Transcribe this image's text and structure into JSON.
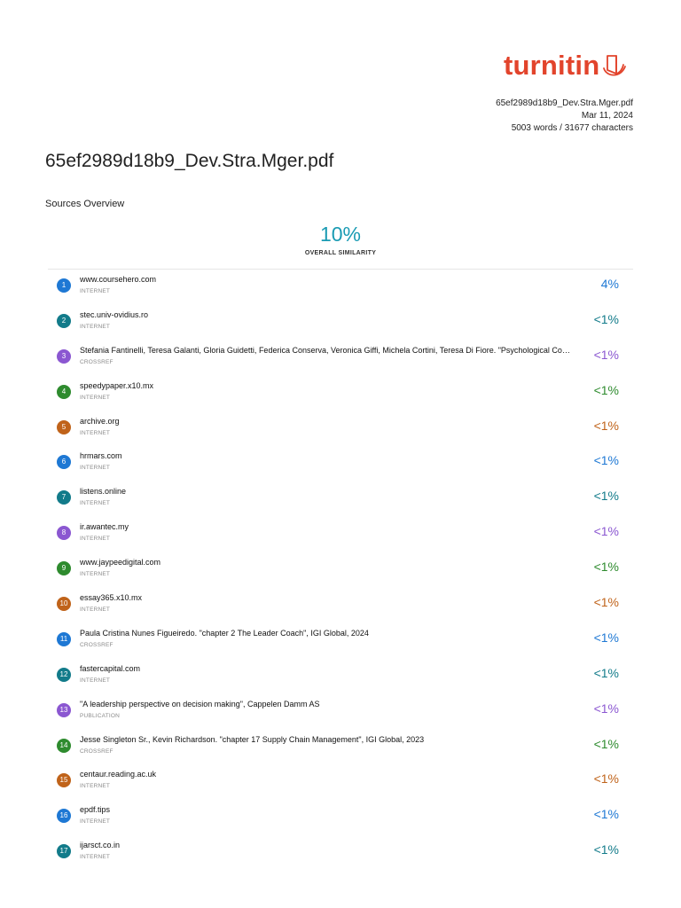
{
  "brand": {
    "name": "turnitin",
    "color": "#e2442c"
  },
  "meta": {
    "filename": "65ef2989d18b9_Dev.Stra.Mger.pdf",
    "date": "Mar 11, 2024",
    "counts": "5003 words / 31677 characters"
  },
  "title": "65ef2989d18b9_Dev.Stra.Mger.pdf",
  "section_title": "Sources Overview",
  "overall": {
    "value": "10%",
    "label": "OVERALL SIMILARITY",
    "color": "#1a9bb3"
  },
  "sources": [
    {
      "num": "1",
      "name": "www.coursehero.com",
      "type": "INTERNET",
      "pct": "4%",
      "color": "#1e78d4"
    },
    {
      "num": "2",
      "name": "stec.univ-ovidius.ro",
      "type": "INTERNET",
      "pct": "<1%",
      "color": "#127b8a"
    },
    {
      "num": "3",
      "name": "Stefania Fantinelli, Teresa Galanti, Gloria Guidetti, Federica Conserva, Veronica Giffi, Michela Cortini, Teresa Di Fiore. \"Psychological Co…",
      "type": "CROSSREF",
      "pct": "<1%",
      "color": "#8b57d1"
    },
    {
      "num": "4",
      "name": "speedypaper.x10.mx",
      "type": "INTERNET",
      "pct": "<1%",
      "color": "#2e8b2e"
    },
    {
      "num": "5",
      "name": "archive.org",
      "type": "INTERNET",
      "pct": "<1%",
      "color": "#c0631a"
    },
    {
      "num": "6",
      "name": "hrmars.com",
      "type": "INTERNET",
      "pct": "<1%",
      "color": "#1e78d4"
    },
    {
      "num": "7",
      "name": "listens.online",
      "type": "INTERNET",
      "pct": "<1%",
      "color": "#127b8a"
    },
    {
      "num": "8",
      "name": "ir.awantec.my",
      "type": "INTERNET",
      "pct": "<1%",
      "color": "#8b57d1"
    },
    {
      "num": "9",
      "name": "www.jaypeedigital.com",
      "type": "INTERNET",
      "pct": "<1%",
      "color": "#2e8b2e"
    },
    {
      "num": "10",
      "name": "essay365.x10.mx",
      "type": "INTERNET",
      "pct": "<1%",
      "color": "#c0631a"
    },
    {
      "num": "11",
      "name": "Paula Cristina Nunes Figueiredo. \"chapter 2 The Leader Coach\", IGI Global, 2024",
      "type": "CROSSREF",
      "pct": "<1%",
      "color": "#1e78d4"
    },
    {
      "num": "12",
      "name": "fastercapital.com",
      "type": "INTERNET",
      "pct": "<1%",
      "color": "#127b8a"
    },
    {
      "num": "13",
      "name": "\"A leadership perspective on decision making\", Cappelen Damm AS",
      "type": "PUBLICATION",
      "pct": "<1%",
      "color": "#8b57d1"
    },
    {
      "num": "14",
      "name": "Jesse Singleton Sr., Kevin Richardson. \"chapter 17 Supply Chain Management\", IGI Global, 2023",
      "type": "CROSSREF",
      "pct": "<1%",
      "color": "#2e8b2e"
    },
    {
      "num": "15",
      "name": "centaur.reading.ac.uk",
      "type": "INTERNET",
      "pct": "<1%",
      "color": "#c0631a"
    },
    {
      "num": "16",
      "name": "epdf.tips",
      "type": "INTERNET",
      "pct": "<1%",
      "color": "#1e78d4"
    },
    {
      "num": "17",
      "name": "ijarsct.co.in",
      "type": "INTERNET",
      "pct": "<1%",
      "color": "#127b8a"
    }
  ]
}
